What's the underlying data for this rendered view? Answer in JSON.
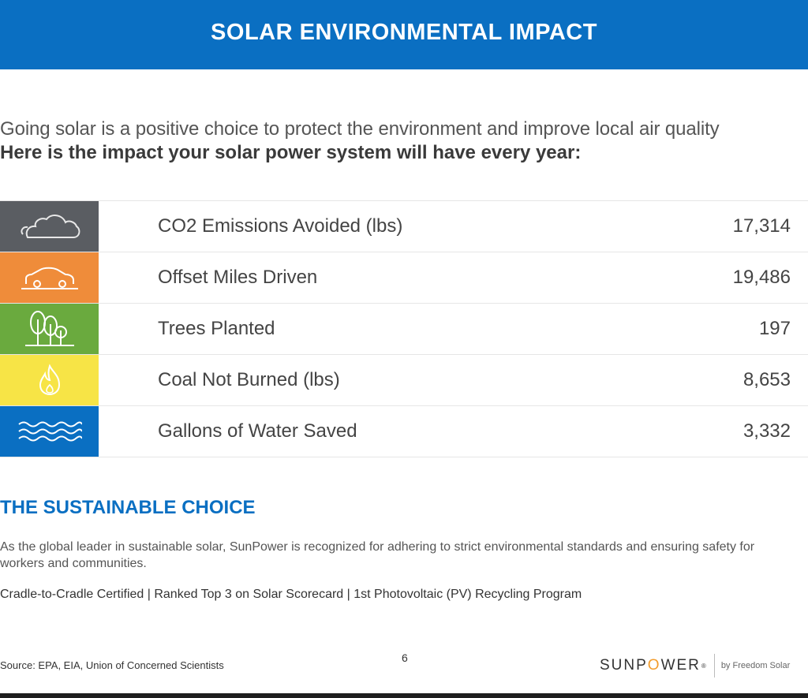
{
  "header": {
    "title": "SOLAR ENVIRONMENTAL IMPACT"
  },
  "intro": {
    "line1": "Going solar is a positive choice to protect the environment and improve local air quality",
    "line2": "Here is the impact your solar power system will have every year:"
  },
  "impact_rows": [
    {
      "icon": "cloud-icon",
      "color": "#5a5d62",
      "label": "CO2 Emissions Avoided (lbs)",
      "value": "17,314"
    },
    {
      "icon": "car-icon",
      "color": "#ef8c3a",
      "label": "Offset Miles Driven",
      "value": "19,486"
    },
    {
      "icon": "trees-icon",
      "color": "#6aaa3e",
      "label": "Trees Planted",
      "value": "197"
    },
    {
      "icon": "flame-icon",
      "color": "#f7e446",
      "label": "Coal Not Burned (lbs)",
      "value": "8,653"
    },
    {
      "icon": "water-icon",
      "color": "#0a6fc2",
      "label": "Gallons of Water Saved",
      "value": "3,332"
    }
  ],
  "sustainable": {
    "title": "THE SUSTAINABLE CHOICE",
    "body": "As the global leader in sustainable solar, SunPower is recognized for adhering to strict environmental standards and ensuring safety for workers and communities.",
    "certs": "Cradle-to-Cradle Certified | Ranked Top 3 on Solar Scorecard | 1st Photovoltaic (PV) Recycling Program"
  },
  "footer": {
    "source": "Source: EPA, EIA, Union of Concerned Scientists",
    "page_number": "6",
    "logo_pre": "SUNP",
    "logo_o": "O",
    "logo_post": "WER",
    "logo_reg": "®",
    "logo_sub": "by Freedom Solar"
  }
}
